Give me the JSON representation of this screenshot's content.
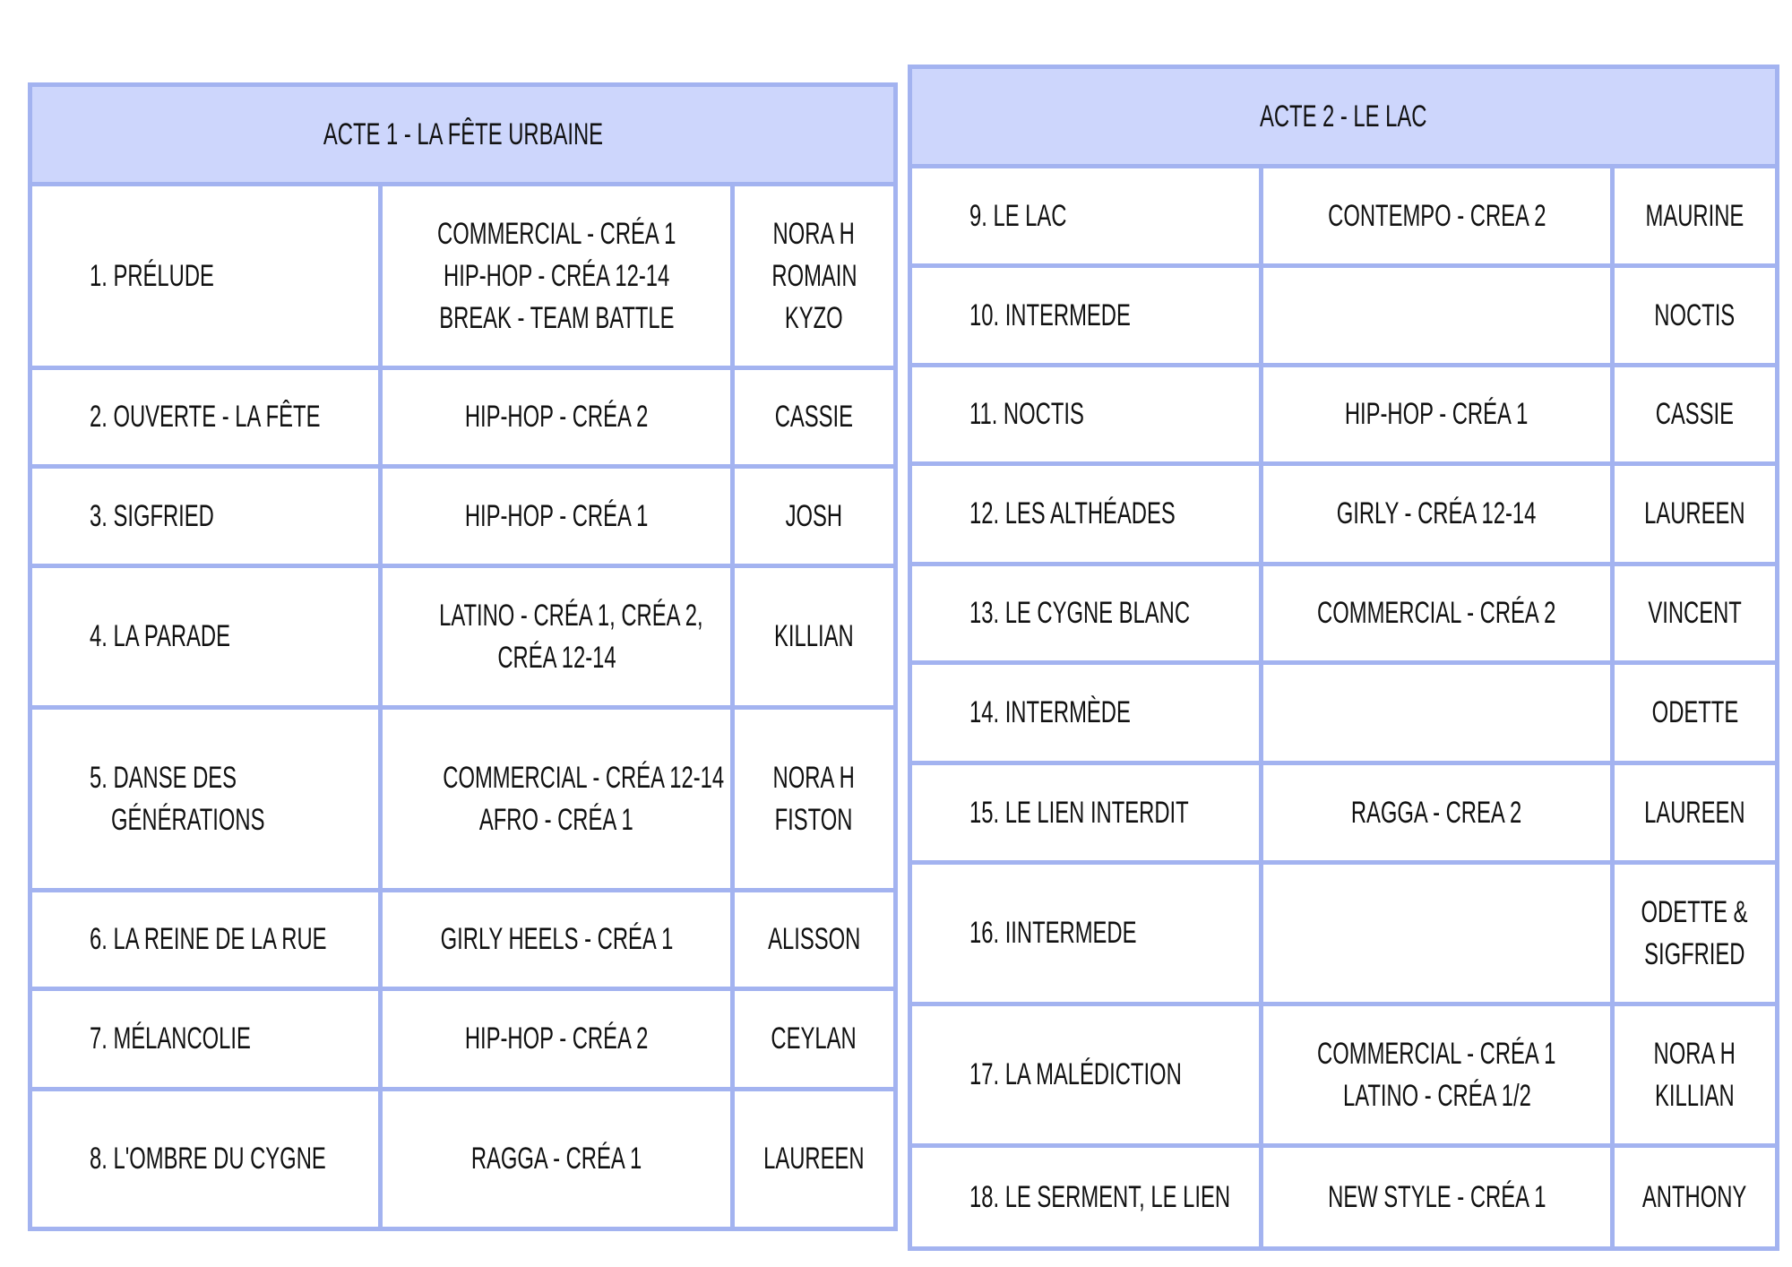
{
  "colors": {
    "border": "#a3b3f0",
    "header_bg": "#cdd6fc",
    "text": "#111111"
  },
  "act1": {
    "title": "ACTE 1 - LA FÊTE URBAINE",
    "rows": [
      {
        "scene": "1. PRÉLUDE",
        "styles": [
          "COMMERCIAL - CRÉA 1",
          "HIP-HOP - CRÉA 12-14",
          "BREAK - TEAM BATTLE"
        ],
        "dancers": [
          "NORA H",
          "ROMAIN",
          "KYZO"
        ]
      },
      {
        "scene": "2. OUVERTE - LA FÊTE",
        "styles": [
          "HIP-HOP - CRÉA 2"
        ],
        "dancers": [
          "CASSIE"
        ]
      },
      {
        "scene": "3. SIGFRIED",
        "styles": [
          "HIP-HOP - CRÉA 1"
        ],
        "dancers": [
          "JOSH"
        ]
      },
      {
        "scene": "4. LA PARADE",
        "styles": [
          "LATINO - CRÉA 1, CRÉA 2,",
          "CRÉA 12-14"
        ],
        "dancers": [
          "KILLIAN"
        ]
      },
      {
        "scene": "5. DANSE DES",
        "scene2": "GÉNÉRATIONS",
        "styles": [
          "COMMERCIAL - CRÉA 12-14",
          "AFRO - CRÉA 1"
        ],
        "dancers": [
          "NORA H",
          "FISTON"
        ]
      },
      {
        "scene": "6. LA REINE DE LA RUE",
        "styles": [
          "GIRLY HEELS - CRÉA 1"
        ],
        "dancers": [
          "ALISSON"
        ]
      },
      {
        "scene": "7. MÉLANCOLIE",
        "styles": [
          "HIP-HOP - CRÉA 2"
        ],
        "dancers": [
          "CEYLAN"
        ]
      },
      {
        "scene": "8. L'OMBRE DU CYGNE",
        "styles": [
          "RAGGA - CRÉA 1"
        ],
        "dancers": [
          "LAUREEN"
        ]
      }
    ]
  },
  "act2": {
    "title": "ACTE 2 - LE LAC",
    "rows": [
      {
        "scene": "9. LE LAC",
        "styles": [
          "CONTEMPO - CREA 2"
        ],
        "dancers": [
          "MAURINE"
        ]
      },
      {
        "scene": "10. INTERMEDE",
        "styles": [],
        "dancers": [
          "NOCTIS"
        ]
      },
      {
        "scene": "11. NOCTIS",
        "styles": [
          "HIP-HOP - CRÉA 1"
        ],
        "dancers": [
          "CASSIE"
        ]
      },
      {
        "scene": "12. LES ALTHÉADES",
        "styles": [
          "GIRLY - CRÉA 12-14"
        ],
        "dancers": [
          "LAUREEN"
        ]
      },
      {
        "scene": "13. LE CYGNE BLANC",
        "styles": [
          "COMMERCIAL - CRÉA 2"
        ],
        "dancers": [
          "VINCENT"
        ]
      },
      {
        "scene": "14. INTERMÈDE",
        "styles": [],
        "dancers": [
          "ODETTE"
        ]
      },
      {
        "scene": "15. LE LIEN INTERDIT",
        "styles": [
          "RAGGA - CREA 2"
        ],
        "dancers": [
          "LAUREEN"
        ]
      },
      {
        "scene": "16. IINTERMEDE",
        "styles": [],
        "dancers": [
          "ODETTE &",
          "SIGFRIED"
        ]
      },
      {
        "scene": "17. LA MALÉDICTION",
        "styles": [
          "COMMERCIAL - CRÉA 1",
          "LATINO - CRÉA 1/2"
        ],
        "dancers": [
          "NORA H",
          "KILLIAN"
        ]
      },
      {
        "scene": "18. LE SERMENT, LE LIEN",
        "styles": [
          "NEW STYLE - CRÉA 1"
        ],
        "dancers": [
          "ANTHONY"
        ]
      }
    ]
  }
}
